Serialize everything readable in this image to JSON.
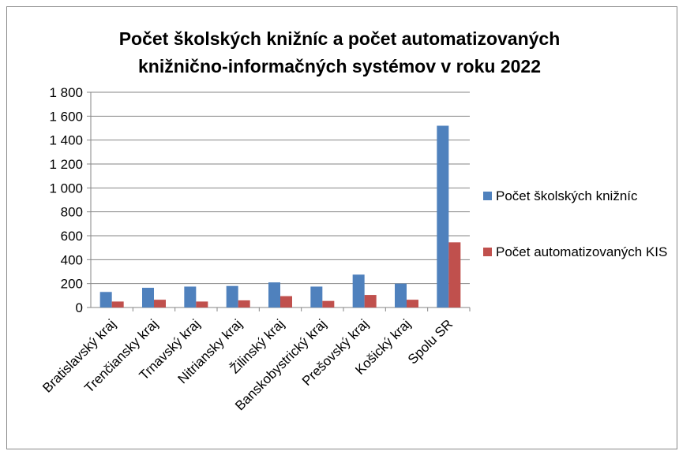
{
  "chart_data": {
    "type": "bar",
    "title": "Počet školských knižníc a počet automatizovaných knižnično-informačných systémov v roku 2022",
    "categories": [
      "Bratislavský kraj",
      "Trenčiansky kraj",
      "Trnavský kraj",
      "Nitriansky kraj",
      "Žilinský kraj",
      "Banskobystrický kraj",
      "Prešovský kraj",
      "Košický kraj",
      "Spolu SR"
    ],
    "series": [
      {
        "name": "Počet školských knižníc",
        "color": "#4f81bd",
        "values": [
          130,
          165,
          175,
          180,
          210,
          175,
          275,
          200,
          1520
        ]
      },
      {
        "name": "Počet automatizovaných KIS",
        "color": "#c0504d",
        "values": [
          50,
          65,
          50,
          60,
          95,
          55,
          105,
          65,
          545
        ]
      }
    ],
    "ylim": [
      0,
      1800
    ],
    "yticks": [
      0,
      200,
      400,
      600,
      800,
      {
        "value": 1000,
        "label": "1 000"
      },
      {
        "value": 1200,
        "label": "1 200"
      },
      {
        "value": 1400,
        "label": "1 400"
      },
      {
        "value": 1600,
        "label": "1 600"
      },
      {
        "value": 1800,
        "label": "1 800"
      }
    ],
    "grid": true,
    "legend": "right"
  }
}
